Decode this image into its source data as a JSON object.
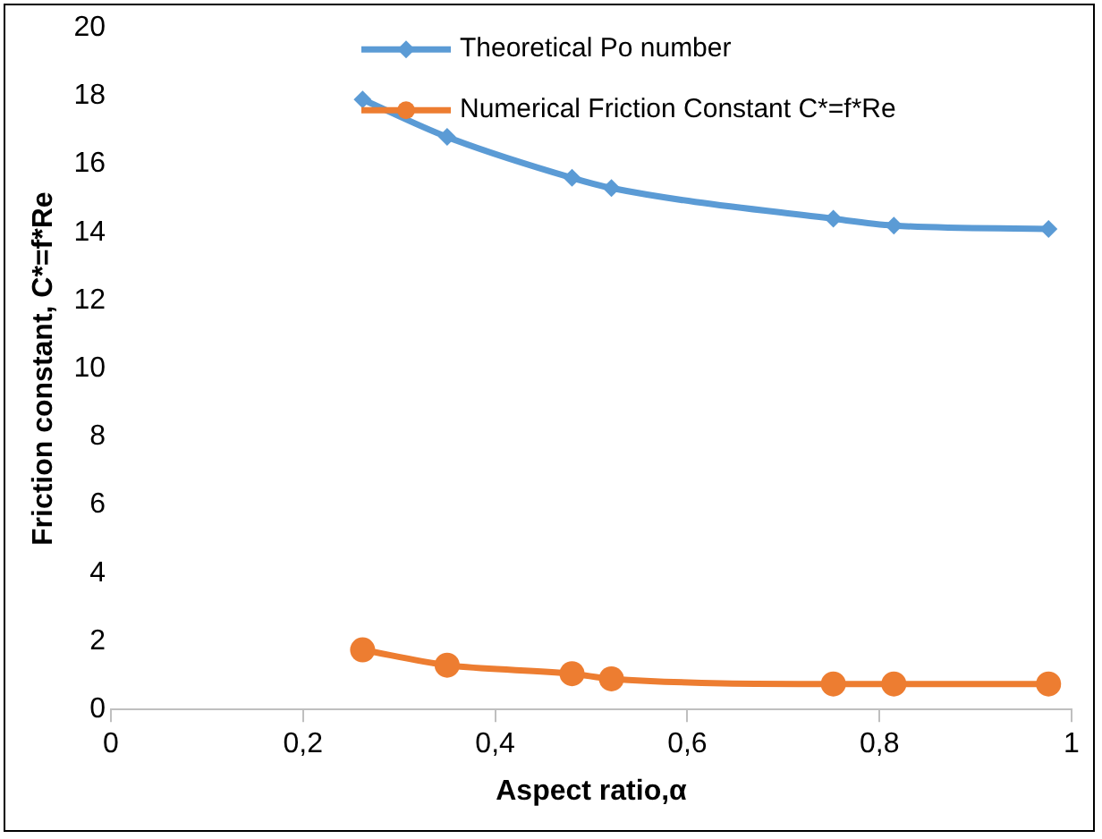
{
  "chart_data": {
    "type": "line",
    "xlabel": "Aspect ratio,α",
    "ylabel": "Friction constant, C*=f*Re",
    "x": [
      0.262,
      0.35,
      0.48,
      0.521,
      0.752,
      0.815,
      0.976
    ],
    "series": [
      {
        "name": "Theoretical Po number",
        "color": "#5b9bd5",
        "marker": "diamond",
        "values": [
          17.9,
          16.8,
          15.6,
          15.3,
          14.4,
          14.2,
          14.1
        ]
      },
      {
        "name": "Numerical Friction Constant C*=f*Re",
        "color": "#ed7d31",
        "marker": "circle",
        "values": [
          1.75,
          1.3,
          1.05,
          0.9,
          0.75,
          0.75,
          0.75
        ]
      }
    ],
    "xlim": [
      0,
      1
    ],
    "xticks": [
      0,
      {
        "value": 0.2,
        "label": "0,2"
      },
      {
        "value": 0.4,
        "label": "0,4"
      },
      {
        "value": 0.6,
        "label": "0,6"
      },
      {
        "value": 0.8,
        "label": "0,8"
      },
      1
    ],
    "ylim": [
      0,
      20
    ],
    "yticks": [
      0,
      2,
      4,
      6,
      8,
      10,
      12,
      14,
      16,
      18,
      20
    ],
    "grid": false,
    "legend": "top right"
  }
}
